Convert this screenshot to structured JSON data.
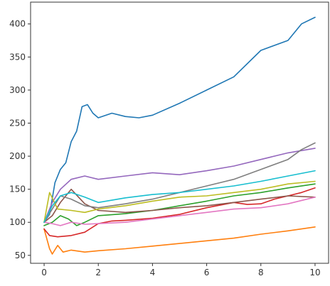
{
  "chart_data": {
    "type": "line",
    "title": "",
    "xlabel": "",
    "ylabel": "",
    "xlim": [
      -0.5,
      10.5
    ],
    "ylim": [
      38,
      433
    ],
    "x_ticks": [
      0,
      2,
      4,
      6,
      8,
      10
    ],
    "y_ticks": [
      50,
      100,
      150,
      200,
      250,
      300,
      350,
      400
    ],
    "x_tick_labels": [
      "0",
      "2",
      "4",
      "6",
      "8",
      "10"
    ],
    "y_tick_labels": [
      "50",
      "100",
      "150",
      "200",
      "250",
      "300",
      "350",
      "400"
    ],
    "grid": false,
    "legend": "none",
    "series": [
      {
        "color": "#1f77b4",
        "x": [
          0,
          0.2,
          0.4,
          0.6,
          0.8,
          1.0,
          1.2,
          1.4,
          1.6,
          1.8,
          2.0,
          2.5,
          3.0,
          3.5,
          4.0,
          5.0,
          6.0,
          7.0,
          8.0,
          9.0,
          9.5,
          10.0
        ],
        "y": [
          100,
          112,
          160,
          180,
          190,
          222,
          238,
          275,
          278,
          265,
          258,
          265,
          260,
          258,
          262,
          280,
          300,
          320,
          360,
          375,
          400,
          410
        ]
      },
      {
        "color": "#ff7f0e",
        "x": [
          0,
          0.2,
          0.3,
          0.5,
          0.7,
          1.0,
          1.5,
          2.0,
          3.0,
          4.0,
          5.0,
          6.0,
          7.0,
          8.0,
          9.0,
          10.0
        ],
        "y": [
          90,
          60,
          52,
          65,
          55,
          58,
          55,
          57,
          60,
          64,
          68,
          72,
          76,
          82,
          87,
          93
        ]
      },
      {
        "color": "#2ca02c",
        "x": [
          0,
          0.3,
          0.6,
          0.9,
          1.2,
          1.5,
          2.0,
          3.0,
          4.0,
          5.0,
          6.0,
          7.0,
          8.0,
          9.0,
          10.0
        ],
        "y": [
          95,
          100,
          110,
          105,
          95,
          100,
          110,
          113,
          118,
          125,
          132,
          140,
          145,
          152,
          158
        ]
      },
      {
        "color": "#d62728",
        "x": [
          0,
          0.2,
          0.5,
          1.0,
          1.5,
          2.0,
          2.5,
          3.0,
          4.0,
          5.0,
          6.0,
          7.0,
          7.5,
          8.0,
          8.5,
          9.0,
          9.5,
          10.0
        ],
        "y": [
          90,
          80,
          78,
          80,
          85,
          98,
          102,
          103,
          106,
          112,
          122,
          130,
          127,
          128,
          135,
          140,
          145,
          152
        ]
      },
      {
        "color": "#9467bd",
        "x": [
          0,
          0.3,
          0.6,
          1.0,
          1.5,
          2.0,
          3.0,
          4.0,
          5.0,
          6.0,
          7.0,
          8.0,
          9.0,
          10.0
        ],
        "y": [
          100,
          130,
          150,
          165,
          170,
          165,
          170,
          175,
          172,
          178,
          185,
          195,
          205,
          212
        ]
      },
      {
        "color": "#8c564b",
        "x": [
          0,
          0.3,
          0.6,
          1.0,
          1.5,
          2.0,
          3.0,
          4.0,
          5.0,
          6.0,
          7.0,
          8.0,
          9.0,
          10.0
        ],
        "y": [
          100,
          110,
          130,
          150,
          128,
          118,
          115,
          118,
          122,
          125,
          130,
          135,
          140,
          138
        ]
      },
      {
        "color": "#e377c2",
        "x": [
          0,
          0.3,
          0.6,
          1.0,
          1.5,
          2.0,
          3.0,
          4.0,
          5.0,
          6.0,
          7.0,
          8.0,
          9.0,
          10.0
        ],
        "y": [
          100,
          98,
          95,
          100,
          97,
          98,
          100,
          105,
          110,
          115,
          120,
          122,
          128,
          138
        ]
      },
      {
        "color": "#7f7f7f",
        "x": [
          0,
          0.3,
          0.6,
          1.0,
          1.5,
          2.0,
          3.0,
          4.0,
          5.0,
          6.0,
          7.0,
          8.0,
          9.0,
          9.5,
          10.0
        ],
        "y": [
          100,
          120,
          140,
          135,
          125,
          122,
          128,
          135,
          145,
          155,
          165,
          180,
          195,
          210,
          220
        ]
      },
      {
        "color": "#bcbd22",
        "x": [
          0,
          0.2,
          0.5,
          1.0,
          1.5,
          2.0,
          3.0,
          4.0,
          5.0,
          6.0,
          7.0,
          8.0,
          9.0,
          10.0
        ],
        "y": [
          100,
          145,
          120,
          118,
          115,
          120,
          125,
          132,
          138,
          140,
          145,
          150,
          158,
          162
        ]
      },
      {
        "color": "#17becf",
        "x": [
          0,
          0.3,
          0.6,
          1.0,
          1.5,
          2.0,
          3.0,
          4.0,
          5.0,
          6.0,
          7.0,
          8.0,
          9.0,
          10.0
        ],
        "y": [
          100,
          125,
          140,
          145,
          138,
          130,
          137,
          142,
          145,
          150,
          155,
          162,
          170,
          178
        ]
      }
    ]
  }
}
